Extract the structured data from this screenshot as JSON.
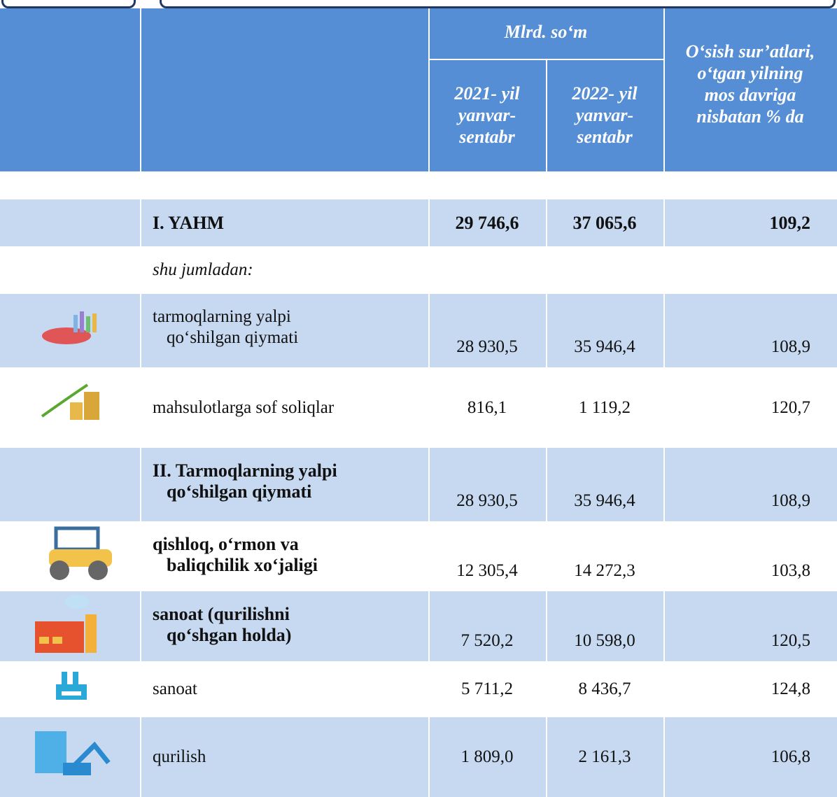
{
  "header": {
    "unit": "Mlrd. so‘m",
    "col_2021": [
      "2021- yil",
      "yanvar-",
      "sentabr"
    ],
    "col_2022": [
      "2022- yil",
      "yanvar-",
      "sentabr"
    ],
    "growth": [
      "O‘sish sur’atlari,",
      "o‘tgan yilning",
      "mos davriga",
      "nisbatan % da"
    ]
  },
  "rows": [
    {
      "label": [
        "I. YAHM"
      ],
      "values": [
        "29 746,6",
        "37 065,6",
        "109,2"
      ]
    },
    {
      "label": [
        "shu jumladan:"
      ],
      "values": []
    },
    {
      "label": [
        "tarmoqlarning yalpi",
        "qo‘shilgan qiymati"
      ],
      "values": [
        "28 930,5",
        "35 946,4",
        "108,9"
      ]
    },
    {
      "label": [
        "mahsulotlarga sof soliqlar"
      ],
      "values": [
        "816,1",
        "1 119,2",
        "120,7"
      ]
    },
    {
      "label": [
        "II. Tarmoqlarning yalpi",
        "qo‘shilgan qiymati"
      ],
      "values": [
        "28 930,5",
        "35 946,4",
        "108,9"
      ]
    },
    {
      "label": [
        "qishloq, o‘rmon va",
        "baliqchilik xo‘jaligi"
      ],
      "values": [
        "12 305,4",
        "14 272,3",
        "103,8"
      ]
    },
    {
      "label": [
        "sanoat (qurilishni",
        "qo‘shgan holda)"
      ],
      "values": [
        "7 520,2",
        "10 598,0",
        "120,5"
      ]
    },
    {
      "label": [
        "sanoat"
      ],
      "values": [
        "5 711,2",
        "8 436,7",
        "124,8"
      ]
    },
    {
      "label": [
        "qurilish"
      ],
      "values": [
        "1 809,0",
        "2 161,3",
        "106,8"
      ]
    }
  ]
}
